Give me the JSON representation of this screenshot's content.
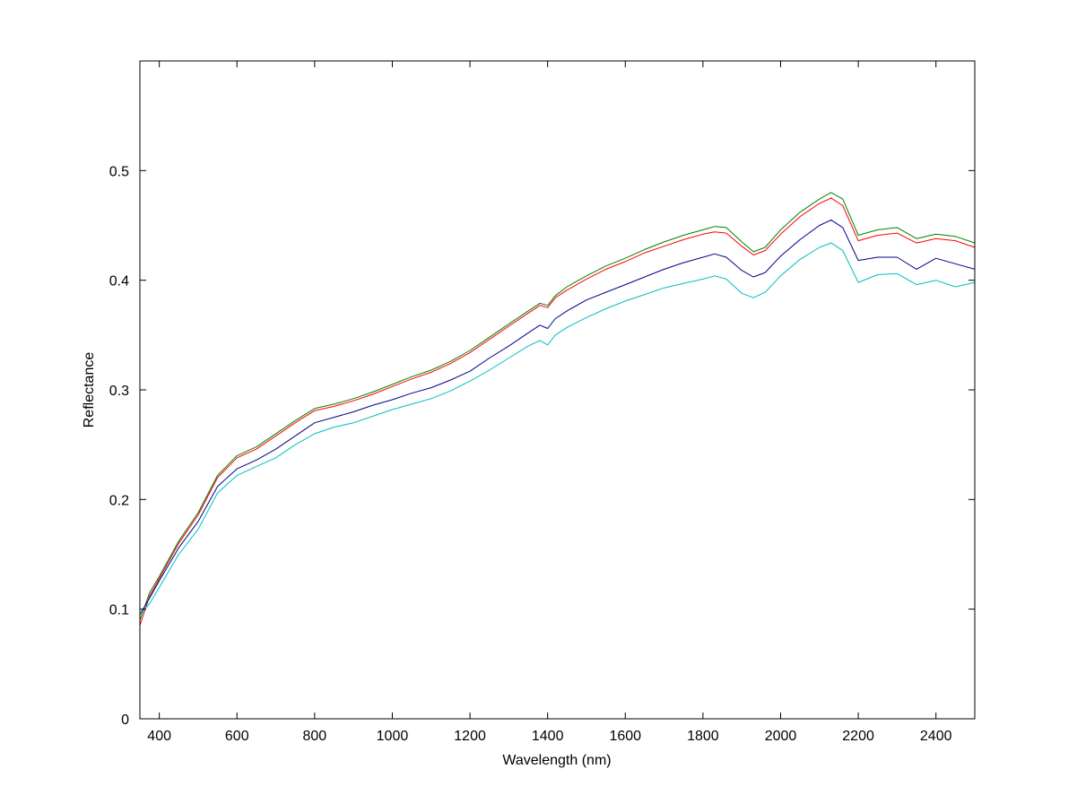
{
  "chart_data": {
    "type": "line",
    "title": "",
    "xlabel": "Wavelength (nm)",
    "ylabel": "Reflectance",
    "xlim": [
      350,
      2500
    ],
    "ylim": [
      0,
      0.6
    ],
    "xticks": [
      400,
      600,
      800,
      1000,
      1200,
      1400,
      1600,
      1800,
      2000,
      2200,
      2400
    ],
    "xtick_labels": [
      "400",
      "600",
      "800",
      "1000",
      "1200",
      "1400",
      "1600",
      "1800",
      "2000",
      "2200",
      "2400"
    ],
    "yticks": [
      0,
      0.1,
      0.2,
      0.3,
      0.4,
      0.5
    ],
    "ytick_labels": [
      "0",
      "0.1",
      "0.2",
      "0.3",
      "0.4",
      "0.5"
    ],
    "grid": false,
    "legend": "none",
    "x": [
      350,
      375,
      400,
      450,
      500,
      550,
      600,
      650,
      700,
      750,
      800,
      850,
      900,
      950,
      1000,
      1050,
      1100,
      1150,
      1200,
      1250,
      1300,
      1350,
      1380,
      1400,
      1420,
      1450,
      1500,
      1550,
      1600,
      1650,
      1700,
      1750,
      1800,
      1830,
      1860,
      1900,
      1930,
      1960,
      2000,
      2050,
      2100,
      2130,
      2160,
      2200,
      2250,
      2300,
      2350,
      2400,
      2450,
      2500
    ],
    "series": [
      {
        "color": "#008000",
        "values": [
          0.09,
          0.115,
          0.13,
          0.162,
          0.188,
          0.222,
          0.24,
          0.248,
          0.26,
          0.272,
          0.283,
          0.287,
          0.292,
          0.298,
          0.305,
          0.312,
          0.318,
          0.326,
          0.336,
          0.348,
          0.36,
          0.372,
          0.379,
          0.377,
          0.386,
          0.394,
          0.404,
          0.413,
          0.42,
          0.428,
          0.435,
          0.441,
          0.446,
          0.449,
          0.448,
          0.435,
          0.426,
          0.43,
          0.446,
          0.462,
          0.474,
          0.48,
          0.474,
          0.441,
          0.446,
          0.448,
          0.438,
          0.442,
          0.44,
          0.434
        ]
      },
      {
        "color": "#ff0000",
        "values": [
          0.085,
          0.112,
          0.128,
          0.16,
          0.186,
          0.22,
          0.238,
          0.246,
          0.258,
          0.27,
          0.281,
          0.285,
          0.29,
          0.296,
          0.303,
          0.31,
          0.316,
          0.324,
          0.334,
          0.346,
          0.358,
          0.37,
          0.377,
          0.375,
          0.384,
          0.391,
          0.401,
          0.41,
          0.417,
          0.425,
          0.431,
          0.437,
          0.442,
          0.444,
          0.443,
          0.431,
          0.423,
          0.427,
          0.442,
          0.458,
          0.47,
          0.475,
          0.468,
          0.436,
          0.441,
          0.443,
          0.434,
          0.438,
          0.436,
          0.43
        ]
      },
      {
        "color": "#00008b",
        "values": [
          0.095,
          0.11,
          0.126,
          0.156,
          0.18,
          0.212,
          0.228,
          0.236,
          0.246,
          0.258,
          0.27,
          0.275,
          0.28,
          0.286,
          0.291,
          0.297,
          0.302,
          0.309,
          0.317,
          0.329,
          0.34,
          0.352,
          0.359,
          0.356,
          0.365,
          0.372,
          0.382,
          0.389,
          0.396,
          0.403,
          0.41,
          0.416,
          0.421,
          0.424,
          0.421,
          0.409,
          0.403,
          0.407,
          0.422,
          0.437,
          0.45,
          0.455,
          0.448,
          0.418,
          0.421,
          0.421,
          0.41,
          0.42,
          0.415,
          0.41
        ]
      },
      {
        "color": "#00bfbf",
        "values": [
          0.095,
          0.105,
          0.12,
          0.15,
          0.173,
          0.206,
          0.222,
          0.23,
          0.238,
          0.25,
          0.26,
          0.266,
          0.27,
          0.276,
          0.282,
          0.287,
          0.292,
          0.299,
          0.308,
          0.318,
          0.329,
          0.34,
          0.345,
          0.341,
          0.35,
          0.357,
          0.366,
          0.374,
          0.381,
          0.387,
          0.393,
          0.397,
          0.401,
          0.404,
          0.401,
          0.388,
          0.384,
          0.389,
          0.404,
          0.419,
          0.43,
          0.434,
          0.427,
          0.398,
          0.405,
          0.406,
          0.396,
          0.4,
          0.394,
          0.398
        ]
      }
    ]
  }
}
